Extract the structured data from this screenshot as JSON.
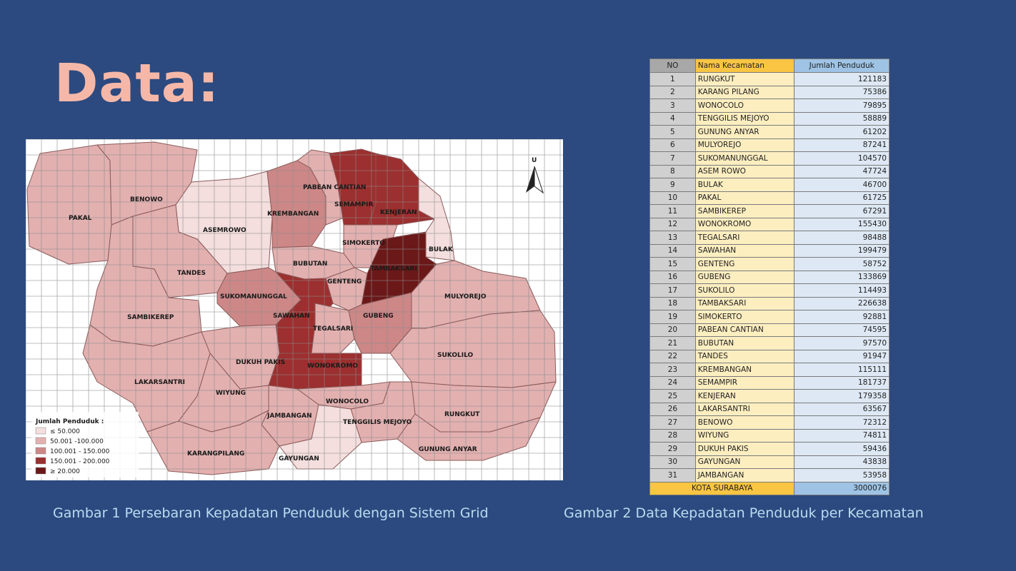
{
  "title": "Data:",
  "captions": {
    "map": "Gambar 1 Persebaran Kepadatan Penduduk dengan Sistem Grid",
    "table": "Gambar 2 Data Kepadatan Penduduk per Kecamatan"
  },
  "map": {
    "north_label": "U",
    "legend_title": "Jumlah Penduduk :",
    "legend": [
      {
        "label": "≤ 50.000",
        "color": "#f4dede"
      },
      {
        "label": "50.001 -100.000",
        "color": "#e3b0b0"
      },
      {
        "label": "100.001 - 150.000",
        "color": "#cd8787"
      },
      {
        "label": "150.001 - 200.000",
        "color": "#9c2f2f"
      },
      {
        "label": "≥ 20.000",
        "color": "#6b1818"
      }
    ],
    "district_labels": [
      "BENOWO",
      "PAKAL",
      "ASEMROWO",
      "PABEAN CANTIAN",
      "KREMBANGAN",
      "SEMAMPIR",
      "KENJERAN",
      "SIMOKERTO",
      "BULAK",
      "TANDES",
      "BUBUTAN",
      "TAMBAKSARI",
      "GENTENG",
      "SUKOMANUNGGAL",
      "MULYOREJO",
      "SAMBIKEREP",
      "SAWAHAN",
      "GUBENG",
      "TEGALSARI",
      "SUKOLILO",
      "DUKUH PAKIS",
      "WONOKROMO",
      "LAKARSANTRI",
      "WIYUNG",
      "WONOCOLO",
      "JAMBANGAN",
      "TENGGILIS MEJOYO",
      "RUNGKUT",
      "KARANGPILANG",
      "GAYUNGAN",
      "GUNUNG ANYAR"
    ]
  },
  "table": {
    "headers": [
      "NO",
      "Nama Kecamatan",
      "Jumlah Penduduk"
    ],
    "rows": [
      [
        "1",
        "RUNGKUT",
        "121183"
      ],
      [
        "2",
        "KARANG PILANG",
        "75386"
      ],
      [
        "3",
        "WONOCOLO",
        "79895"
      ],
      [
        "4",
        "TENGGILIS MEJOYO",
        "58889"
      ],
      [
        "5",
        "GUNUNG ANYAR",
        "61202"
      ],
      [
        "6",
        "MULYOREJO",
        "87241"
      ],
      [
        "7",
        "SUKOMANUNGGAL",
        "104570"
      ],
      [
        "8",
        "ASEM ROWO",
        "47724"
      ],
      [
        "9",
        "BULAK",
        "46700"
      ],
      [
        "10",
        "PAKAL",
        "61725"
      ],
      [
        "11",
        "SAMBIKEREP",
        "67291"
      ],
      [
        "12",
        "WONOKROMO",
        "155430"
      ],
      [
        "13",
        "TEGALSARI",
        "98488"
      ],
      [
        "14",
        "SAWAHAN",
        "199479"
      ],
      [
        "15",
        "GENTENG",
        "58752"
      ],
      [
        "16",
        "GUBENG",
        "133869"
      ],
      [
        "17",
        "SUKOLILO",
        "114493"
      ],
      [
        "18",
        "TAMBAKSARI",
        "226638"
      ],
      [
        "19",
        "SIMOKERTO",
        "92881"
      ],
      [
        "20",
        "PABEAN CANTIAN",
        "74595"
      ],
      [
        "21",
        "BUBUTAN",
        "97570"
      ],
      [
        "22",
        "TANDES",
        "91947"
      ],
      [
        "23",
        "KREMBANGAN",
        "115111"
      ],
      [
        "24",
        "SEMAMPIR",
        "181737"
      ],
      [
        "25",
        "KENJERAN",
        "179358"
      ],
      [
        "26",
        "LAKARSANTRI",
        "63567"
      ],
      [
        "27",
        "BENOWO",
        "72312"
      ],
      [
        "28",
        "WIYUNG",
        "74811"
      ],
      [
        "29",
        "DUKUH PAKIS",
        "59436"
      ],
      [
        "30",
        "GAYUNGAN",
        "43838"
      ],
      [
        "31",
        "JAMBANGAN",
        "53958"
      ]
    ],
    "total_label": "KOTA SURABAYA",
    "total_value": "3000076"
  }
}
